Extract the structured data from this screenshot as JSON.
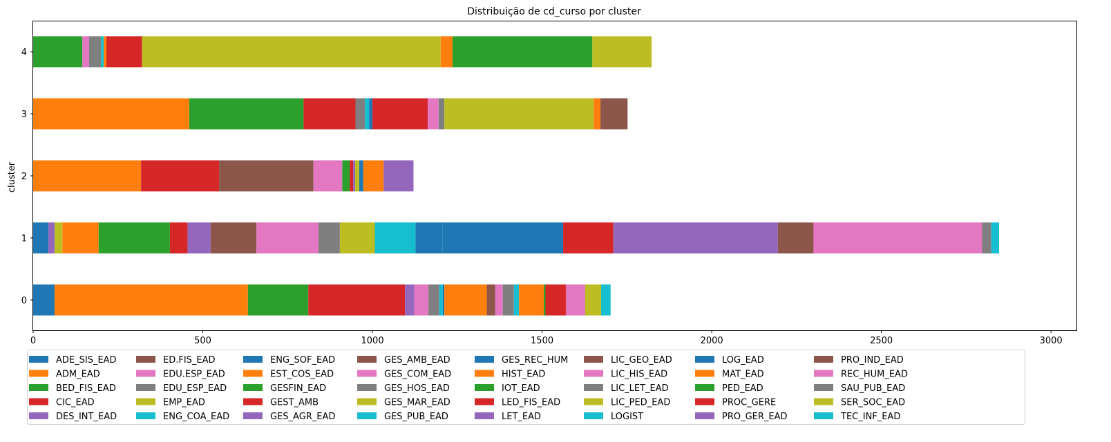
{
  "chart_data": {
    "type": "bar",
    "orientation": "horizontal",
    "stacked": true,
    "title": "Distribuição de cd_curso por cluster",
    "xlabel": "",
    "ylabel": "cluster",
    "xlim": [
      0,
      3075
    ],
    "xticks": [
      0,
      500,
      1000,
      1500,
      2000,
      2500,
      3000
    ],
    "categories": [
      "0",
      "1",
      "2",
      "3",
      "4"
    ],
    "grid": false,
    "legend_position": "bottom",
    "legend_columns": 9,
    "series": [
      {
        "name": "ADE_SIS_EAD",
        "color": "#1f77b4",
        "values": [
          63,
          45,
          0,
          0,
          0
        ]
      },
      {
        "name": "ADM_EAD",
        "color": "#ff7f0e",
        "values": [
          570,
          0,
          0,
          0,
          0
        ]
      },
      {
        "name": "BED_FIS_EAD",
        "color": "#2ca02c",
        "values": [
          178,
          0,
          0,
          0,
          145
        ]
      },
      {
        "name": "CIC_EAD",
        "color": "#d62728",
        "values": [
          285,
          0,
          0,
          0,
          0
        ]
      },
      {
        "name": "DES_INT_EAD",
        "color": "#9467bd",
        "values": [
          27,
          18,
          0,
          0,
          0
        ]
      },
      {
        "name": "ED.FIS_EAD",
        "color": "#8c564b",
        "values": [
          0,
          0,
          0,
          0,
          0
        ]
      },
      {
        "name": "EDU.ESP_EAD",
        "color": "#e377c2",
        "values": [
          42,
          0,
          0,
          0,
          20
        ]
      },
      {
        "name": "EDU_ESP_EAD",
        "color": "#7f7f7f",
        "values": [
          32,
          0,
          0,
          0,
          35
        ]
      },
      {
        "name": "EMP_EAD",
        "color": "#bcbd22",
        "values": [
          0,
          23,
          0,
          0,
          0
        ]
      },
      {
        "name": "ENG_COA_EAD",
        "color": "#17becf",
        "values": [
          10,
          0,
          0,
          0,
          8
        ]
      },
      {
        "name": "ENG_SOF_EAD",
        "color": "#1f77b4",
        "values": [
          5,
          0,
          0,
          0,
          0
        ]
      },
      {
        "name": "EST_COS_EAD",
        "color": "#ff7f0e",
        "values": [
          125,
          107,
          318,
          460,
          8
        ]
      },
      {
        "name": "GESFIN_EAD",
        "color": "#2ca02c",
        "values": [
          0,
          210,
          0,
          337,
          0
        ]
      },
      {
        "name": "GEST_AMB",
        "color": "#d62728",
        "values": [
          0,
          52,
          230,
          153,
          105
        ]
      },
      {
        "name": "GES_AGR_EAD",
        "color": "#9467bd",
        "values": [
          0,
          68,
          0,
          0,
          0
        ]
      },
      {
        "name": "GES_AMB_EAD",
        "color": "#8c564b",
        "values": [
          25,
          135,
          278,
          0,
          0
        ]
      },
      {
        "name": "GES_COM_EAD",
        "color": "#e377c2",
        "values": [
          22,
          183,
          85,
          0,
          0
        ]
      },
      {
        "name": "GES_HOS_EAD",
        "color": "#7f7f7f",
        "values": [
          33,
          63,
          0,
          28,
          0
        ]
      },
      {
        "name": "GES_MAR_EAD",
        "color": "#bcbd22",
        "values": [
          0,
          103,
          0,
          0,
          0
        ]
      },
      {
        "name": "GES_PUB_EAD",
        "color": "#17becf",
        "values": [
          15,
          120,
          0,
          12,
          0
        ]
      },
      {
        "name": "GES_REC_HUM",
        "color": "#1f77b4",
        "values": [
          0,
          80,
          0,
          10,
          0
        ]
      },
      {
        "name": "HIST_EAD",
        "color": "#ff7f0e",
        "values": [
          73,
          0,
          0,
          0,
          0
        ]
      },
      {
        "name": "IOT_EAD",
        "color": "#2ca02c",
        "values": [
          0,
          0,
          22,
          0,
          0
        ]
      },
      {
        "name": "LED_FIS_EAD",
        "color": "#d62728",
        "values": [
          0,
          0,
          10,
          163,
          0
        ]
      },
      {
        "name": "LET_EAD",
        "color": "#9467bd",
        "values": [
          0,
          0,
          6,
          0,
          0
        ]
      },
      {
        "name": "LIC_GEO_EAD",
        "color": "#8c564b",
        "values": [
          0,
          0,
          0,
          0,
          0
        ]
      },
      {
        "name": "LIC_HIS_EAD",
        "color": "#e377c2",
        "values": [
          0,
          0,
          0,
          32,
          0
        ]
      },
      {
        "name": "LIC_LET_EAD",
        "color": "#7f7f7f",
        "values": [
          0,
          0,
          0,
          17,
          0
        ]
      },
      {
        "name": "LIC_PED_EAD",
        "color": "#bcbd22",
        "values": [
          0,
          0,
          12,
          440,
          880
        ]
      },
      {
        "name": "LOGIST",
        "color": "#17becf",
        "values": [
          0,
          0,
          0,
          0,
          0
        ]
      },
      {
        "name": "LOG_EAD",
        "color": "#1f77b4",
        "values": [
          0,
          355,
          12,
          0,
          0
        ]
      },
      {
        "name": "MAT_EAD",
        "color": "#ff7f0e",
        "values": [
          0,
          0,
          60,
          20,
          35
        ]
      },
      {
        "name": "PED_EAD",
        "color": "#2ca02c",
        "values": [
          5,
          0,
          0,
          0,
          412
        ]
      },
      {
        "name": "PROC_GERE",
        "color": "#d62728",
        "values": [
          60,
          148,
          0,
          0,
          0
        ]
      },
      {
        "name": "PRO_GER_EAD",
        "color": "#9467bd",
        "values": [
          0,
          485,
          88,
          0,
          0
        ]
      },
      {
        "name": "PRO_IND_EAD",
        "color": "#8c564b",
        "values": [
          0,
          105,
          0,
          80,
          0
        ]
      },
      {
        "name": "REC_HUM_EAD",
        "color": "#e377c2",
        "values": [
          57,
          497,
          0,
          0,
          0
        ]
      },
      {
        "name": "SAU_PUB_EAD",
        "color": "#7f7f7f",
        "values": [
          0,
          27,
          0,
          0,
          0
        ]
      },
      {
        "name": "SER_SOC_EAD",
        "color": "#bcbd22",
        "values": [
          47,
          0,
          0,
          0,
          175
        ]
      },
      {
        "name": "TEC_INF_EAD",
        "color": "#17becf",
        "values": [
          28,
          23,
          0,
          0,
          0
        ]
      }
    ]
  }
}
